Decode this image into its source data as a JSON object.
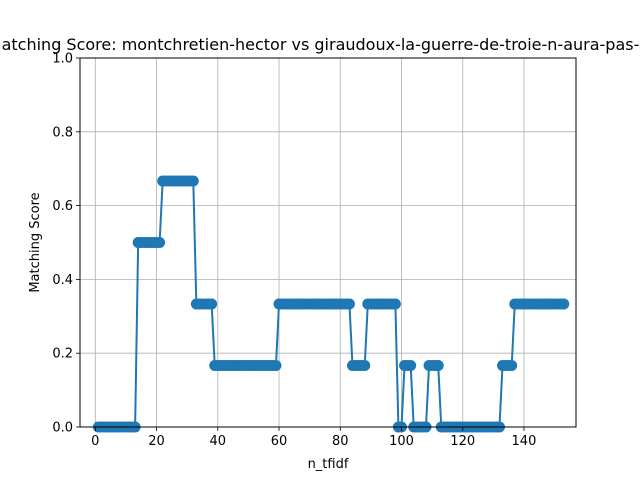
{
  "chart_data": {
    "type": "line",
    "title": "Matching Score: montchretien-hector vs giraudoux-la-guerre-de-troie-n-aura-pas-lieu",
    "xlabel": "n_tfidf",
    "ylabel": "Matching Score",
    "xlim": [
      -5,
      157
    ],
    "ylim": [
      0,
      1
    ],
    "xticks": [
      0,
      20,
      40,
      60,
      80,
      100,
      120,
      140
    ],
    "yticks": [
      0.0,
      0.2,
      0.4,
      0.6,
      0.8,
      1.0
    ],
    "xtick_labels": [
      "0",
      "20",
      "40",
      "60",
      "80",
      "100",
      "120",
      "140"
    ],
    "ytick_labels": [
      "0.0",
      "0.2",
      "0.4",
      "0.6",
      "0.8",
      "1.0"
    ],
    "grid": true,
    "line_color": "#1f77b4",
    "x_start": 1,
    "y": [
      0,
      0,
      0,
      0,
      0,
      0,
      0,
      0,
      0,
      0,
      0,
      0,
      0,
      0.5,
      0.5,
      0.5,
      0.5,
      0.5,
      0.5,
      0.5,
      0.5,
      0.6667,
      0.6667,
      0.6667,
      0.6667,
      0.6667,
      0.6667,
      0.6667,
      0.6667,
      0.6667,
      0.6667,
      0.6667,
      0.3333,
      0.3333,
      0.3333,
      0.3333,
      0.3333,
      0.3333,
      0.1667,
      0.1667,
      0.1667,
      0.1667,
      0.1667,
      0.1667,
      0.1667,
      0.1667,
      0.1667,
      0.1667,
      0.1667,
      0.1667,
      0.1667,
      0.1667,
      0.1667,
      0.1667,
      0.1667,
      0.1667,
      0.1667,
      0.1667,
      0.1667,
      0.3333,
      0.3333,
      0.3333,
      0.3333,
      0.3333,
      0.3333,
      0.3333,
      0.3333,
      0.3333,
      0.3333,
      0.3333,
      0.3333,
      0.3333,
      0.3333,
      0.3333,
      0.3333,
      0.3333,
      0.3333,
      0.3333,
      0.3333,
      0.3333,
      0.3333,
      0.3333,
      0.3333,
      0.1667,
      0.1667,
      0.1667,
      0.1667,
      0.1667,
      0.3333,
      0.3333,
      0.3333,
      0.3333,
      0.3333,
      0.3333,
      0.3333,
      0.3333,
      0.3333,
      0.3333,
      0,
      0,
      0.1667,
      0.1667,
      0.1667,
      0,
      0,
      0,
      0,
      0,
      0.1667,
      0.1667,
      0.1667,
      0.1667,
      0,
      0,
      0,
      0,
      0,
      0,
      0,
      0,
      0,
      0,
      0,
      0,
      0,
      0,
      0,
      0,
      0,
      0,
      0,
      0,
      0.1667,
      0.1667,
      0.1667,
      0.1667,
      0.3333,
      0.3333,
      0.3333,
      0.3333,
      0.3333,
      0.3333,
      0.3333,
      0.3333,
      0.3333,
      0.3333,
      0.3333,
      0.3333,
      0.3333,
      0.3333,
      0.3333,
      0.3333,
      0.3333
    ]
  }
}
